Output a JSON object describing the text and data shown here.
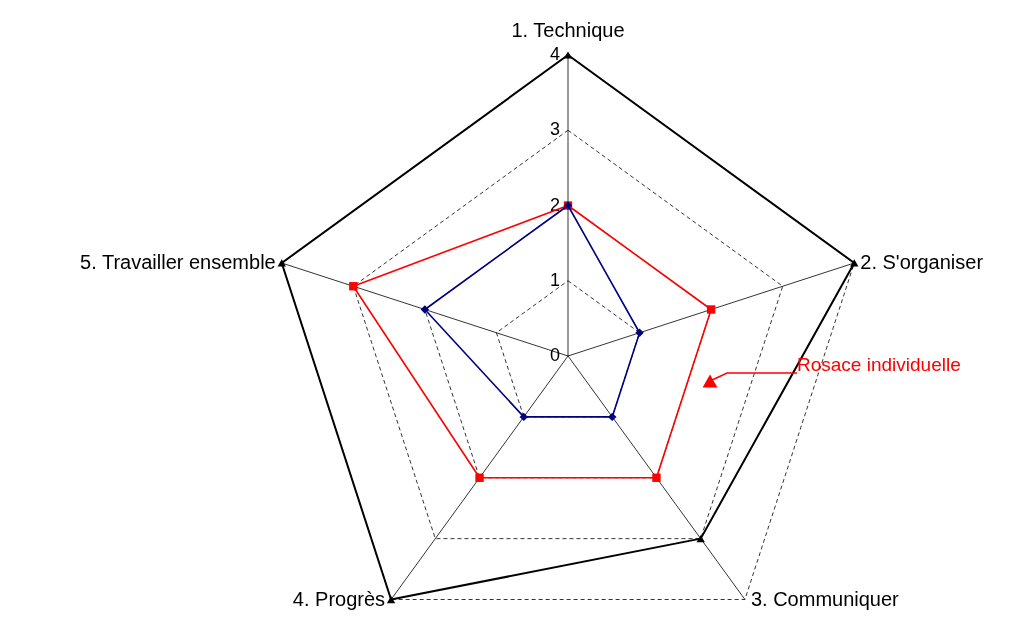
{
  "chart_data": {
    "type": "radar",
    "categories": [
      "1. Technique",
      "2. S'organiser",
      "3. Communiquer",
      "4. Progrès",
      "5. Travailler ensemble"
    ],
    "ylim": [
      0,
      4
    ],
    "yticks": [
      0,
      1,
      2,
      3,
      4
    ],
    "grid": true,
    "line_style": "solid",
    "series": [
      {
        "color": "#000000",
        "marker": "triangle",
        "values": [
          4,
          4,
          3,
          4,
          4
        ]
      },
      {
        "color": "#ff0000",
        "marker": "square",
        "values": [
          2,
          2,
          2,
          2,
          3
        ]
      },
      {
        "color": "#000080",
        "marker": "diamond",
        "values": [
          2,
          1,
          1,
          1,
          2
        ]
      }
    ],
    "annotations": [
      "Rosace individuelle"
    ]
  }
}
